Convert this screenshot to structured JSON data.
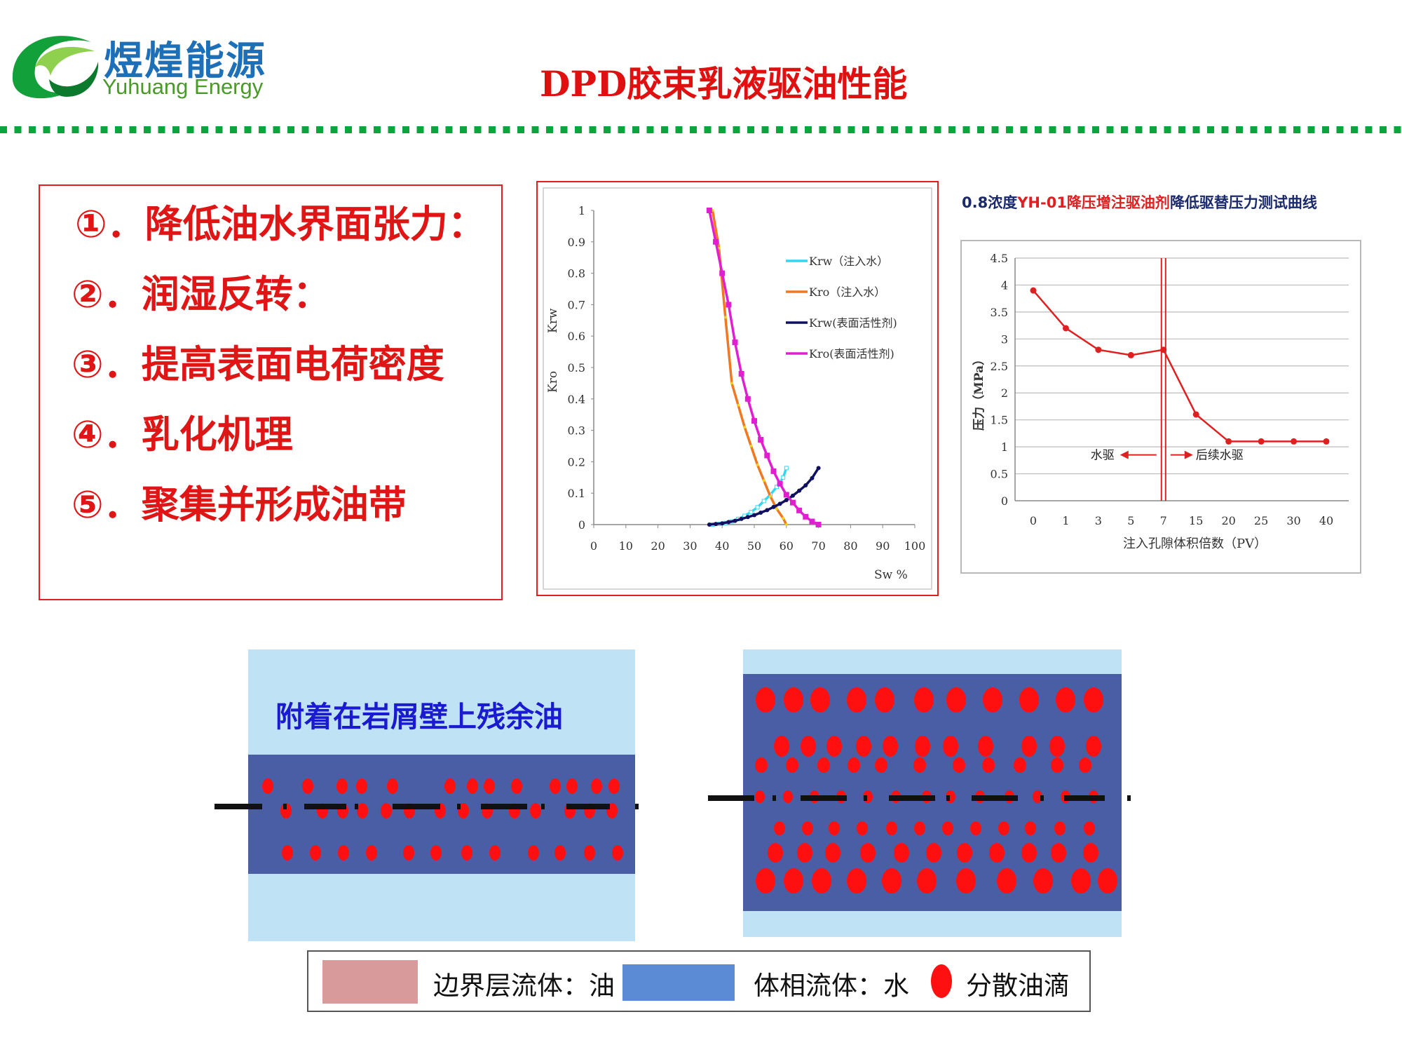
{
  "header": {
    "logo_cn": "煜煌能源",
    "logo_en": "Yuhuang Energy",
    "title": "DPD胶束乳液驱油性能"
  },
  "mechanisms": [
    "①．降低油水界面张力：",
    "②．润湿反转：",
    "③．提高表面电荷密度",
    "④．乳化机理",
    "⑤．聚集并形成油带"
  ],
  "colors": {
    "accent_red": "#e01515",
    "green_dots": "#0aa53c",
    "logo_blue": "#1d6fb8",
    "logo_green": "#4a9a2a",
    "boundary_oil": "#d89a9a",
    "bulk_water": "#5b8bd4",
    "channel_dark": "#4a5ea6",
    "channel_light": "#bfe2f4",
    "droplet": "#ff1010"
  },
  "chart_data": [
    {
      "type": "line",
      "xlabel": "Sw %",
      "ylabel_top": "Krw",
      "ylabel_bottom": "Kro",
      "xlim": [
        0,
        100
      ],
      "ylim": [
        0,
        1
      ],
      "xticks": [
        "0",
        "10",
        "20",
        "30",
        "40",
        "50",
        "60",
        "70",
        "80",
        "90",
        "100"
      ],
      "yticks": [
        "0",
        "0.1",
        "0.2",
        "0.3",
        "0.4",
        "0.5",
        "0.6",
        "0.7",
        "0.8",
        "0.9",
        "1"
      ],
      "legend_position": "right",
      "series": [
        {
          "name": "Krw（注入水）",
          "color": "#33d6f0",
          "x": [
            37,
            39,
            41,
            43,
            45,
            47,
            49,
            51,
            53,
            55,
            57,
            59,
            60
          ],
          "y": [
            0,
            0.002,
            0.005,
            0.01,
            0.018,
            0.028,
            0.04,
            0.055,
            0.075,
            0.095,
            0.12,
            0.15,
            0.18
          ]
        },
        {
          "name": "Kro（注入水）",
          "color": "#f07820",
          "x": [
            37,
            39,
            41,
            43,
            45,
            47,
            49,
            51,
            53,
            55,
            57,
            59,
            60
          ],
          "y": [
            1,
            0.88,
            0.66,
            0.45,
            0.38,
            0.31,
            0.25,
            0.19,
            0.14,
            0.09,
            0.05,
            0.02,
            0
          ]
        },
        {
          "name": "Krw(表面活性剂)",
          "color": "#101060",
          "x": [
            36,
            38,
            40,
            42,
            44,
            46,
            48,
            50,
            52,
            54,
            56,
            58,
            60,
            62,
            64,
            66,
            68,
            70
          ],
          "y": [
            0,
            0.002,
            0.004,
            0.008,
            0.012,
            0.018,
            0.024,
            0.03,
            0.038,
            0.046,
            0.056,
            0.066,
            0.078,
            0.092,
            0.108,
            0.125,
            0.148,
            0.18
          ]
        },
        {
          "name": "Kro(表面活性剂)",
          "color": "#e020d0",
          "x": [
            36,
            38,
            40,
            42,
            44,
            46,
            48,
            50,
            52,
            54,
            56,
            58,
            60,
            62,
            64,
            66,
            68,
            70
          ],
          "y": [
            1,
            0.9,
            0.8,
            0.7,
            0.58,
            0.48,
            0.4,
            0.33,
            0.27,
            0.22,
            0.17,
            0.13,
            0.095,
            0.07,
            0.045,
            0.025,
            0.01,
            0
          ]
        }
      ]
    },
    {
      "type": "line",
      "title_parts": [
        {
          "text": "0.8浓度",
          "color": "#1a2a6c"
        },
        {
          "text": "YH-01降压增注驱油剂",
          "color": "#e02020"
        },
        {
          "text": "降低驱替压力测试曲线",
          "color": "#1a2a6c"
        }
      ],
      "xlabel": "注入孔隙体积倍数（PV）",
      "ylabel": "压力（MPa）",
      "categories": [
        "0",
        "1",
        "3",
        "5",
        "7",
        "15",
        "20",
        "25",
        "30",
        "40"
      ],
      "ylim": [
        0,
        4.5
      ],
      "yticks": [
        "0",
        "0.5",
        "1",
        "1.5",
        "2",
        "2.5",
        "3",
        "3.5",
        "4",
        "4.5"
      ],
      "grid": true,
      "series": [
        {
          "color": "#e02020",
          "values": [
            3.9,
            3.2,
            2.8,
            2.7,
            2.8,
            1.6,
            1.1,
            1.1,
            1.1,
            1.1
          ]
        }
      ],
      "annotations": {
        "left": "水驱",
        "right": "后续水驱",
        "divider_after_category": "7"
      }
    }
  ],
  "diagram": {
    "left_caption": "附着在岩屑壁上残余油"
  },
  "legend": {
    "items": [
      {
        "label": "边界层流体：油"
      },
      {
        "label": "体相流体：水"
      },
      {
        "label": "分散油滴"
      }
    ]
  }
}
